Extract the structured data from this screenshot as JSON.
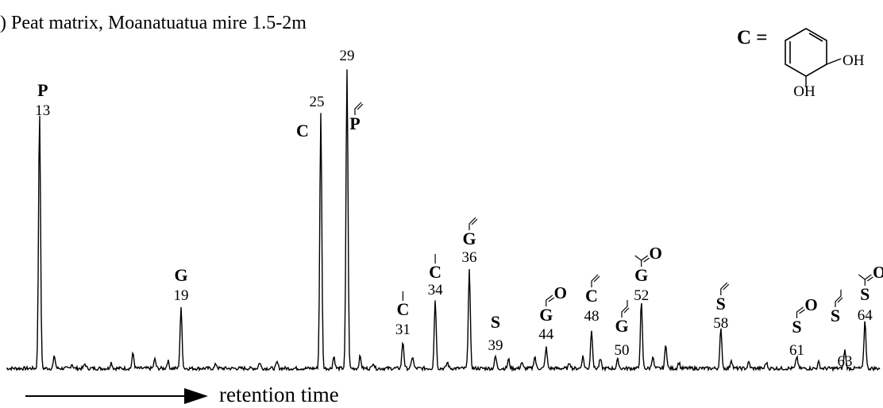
{
  "title": ") Peat matrix,  Moanatuatua mire 1.5-2m",
  "xaxis_label": "retention time",
  "structure_key": {
    "label": "C =",
    "oh_top": "OH",
    "oh_bottom": "OH"
  },
  "chart_data": {
    "type": "line",
    "title": ") Peat matrix,  Moanatuatua mire 1.5-2m",
    "xlabel": "retention time",
    "ylabel": "",
    "peaks": [
      {
        "id": "13",
        "compound": "P",
        "substituent": "",
        "pos": 0.038,
        "height": 0.86
      },
      {
        "id": "19",
        "compound": "G",
        "substituent": "",
        "pos": 0.2,
        "height": 0.2
      },
      {
        "id": "25",
        "compound": "C",
        "substituent": "",
        "pos": 0.36,
        "height": 0.85
      },
      {
        "id": "29",
        "compound": "P",
        "substituent": "vinyl",
        "pos": 0.39,
        "height": 1.0
      },
      {
        "id": "31",
        "compound": "C",
        "substituent": "methyl",
        "pos": 0.454,
        "height": 0.09
      },
      {
        "id": "34",
        "compound": "C",
        "substituent": "methyl",
        "pos": 0.491,
        "height": 0.23
      },
      {
        "id": "36",
        "compound": "G",
        "substituent": "vinyl",
        "pos": 0.53,
        "height": 0.33
      },
      {
        "id": "39",
        "compound": "S",
        "substituent": "",
        "pos": 0.56,
        "height": 0.04
      },
      {
        "id": "44",
        "compound": "G",
        "substituent": "aldehyde",
        "pos": 0.618,
        "height": 0.07
      },
      {
        "id": "48",
        "compound": "C",
        "substituent": "vinyl",
        "pos": 0.67,
        "height": 0.13
      },
      {
        "id": "50",
        "compound": "G",
        "substituent": "propenyl",
        "pos": 0.7,
        "height": 0.03
      },
      {
        "id": "52",
        "compound": "G",
        "substituent": "acetyl",
        "pos": 0.727,
        "height": 0.22
      },
      {
        "id": "58",
        "compound": "S",
        "substituent": "vinyl",
        "pos": 0.818,
        "height": 0.13
      },
      {
        "id": "61",
        "compound": "S",
        "substituent": "aldehyde",
        "pos": 0.905,
        "height": 0.04
      },
      {
        "id": "63",
        "compound": "S",
        "substituent": "propenyl",
        "pos": 0.96,
        "height": 0.06
      },
      {
        "id": "64",
        "compound": "S",
        "substituent": "acetyl",
        "pos": 0.983,
        "height": 0.16
      }
    ],
    "minor_peaks": [
      {
        "pos": 0.055,
        "height": 0.04
      },
      {
        "pos": 0.075,
        "height": 0.015
      },
      {
        "pos": 0.09,
        "height": 0.015
      },
      {
        "pos": 0.12,
        "height": 0.02
      },
      {
        "pos": 0.145,
        "height": 0.05
      },
      {
        "pos": 0.17,
        "height": 0.03
      },
      {
        "pos": 0.185,
        "height": 0.025
      },
      {
        "pos": 0.24,
        "height": 0.015
      },
      {
        "pos": 0.29,
        "height": 0.02
      },
      {
        "pos": 0.31,
        "height": 0.02
      },
      {
        "pos": 0.375,
        "height": 0.04
      },
      {
        "pos": 0.405,
        "height": 0.04
      },
      {
        "pos": 0.42,
        "height": 0.02
      },
      {
        "pos": 0.465,
        "height": 0.04
      },
      {
        "pos": 0.505,
        "height": 0.02
      },
      {
        "pos": 0.575,
        "height": 0.03
      },
      {
        "pos": 0.59,
        "height": 0.02
      },
      {
        "pos": 0.605,
        "height": 0.04
      },
      {
        "pos": 0.645,
        "height": 0.02
      },
      {
        "pos": 0.66,
        "height": 0.04
      },
      {
        "pos": 0.68,
        "height": 0.03
      },
      {
        "pos": 0.74,
        "height": 0.04
      },
      {
        "pos": 0.755,
        "height": 0.08
      },
      {
        "pos": 0.77,
        "height": 0.02
      },
      {
        "pos": 0.83,
        "height": 0.03
      },
      {
        "pos": 0.85,
        "height": 0.02
      },
      {
        "pos": 0.87,
        "height": 0.02
      },
      {
        "pos": 0.93,
        "height": 0.02
      }
    ]
  }
}
